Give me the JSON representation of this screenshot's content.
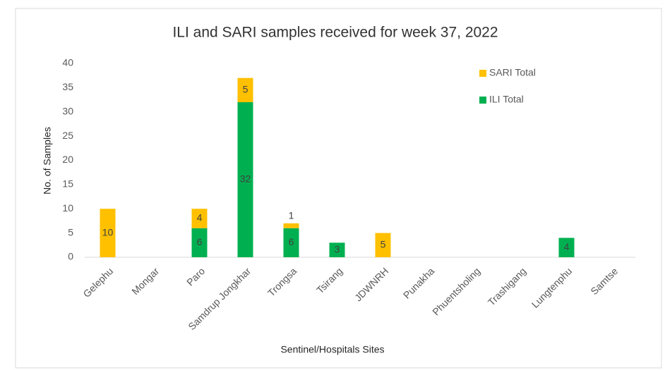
{
  "chart_data": {
    "type": "stacked_bar",
    "title": "ILI and SARI samples received for week 37, 2022",
    "y_label": "No. of Samples",
    "x_label": "Sentinel/Hospitals Sites",
    "categories": [
      "Gelephu",
      "Mongar",
      "Paro",
      "Samdrup Jongkhar",
      "Trongsa",
      "Tsirang",
      "JDWNRH",
      "Punakha",
      "Phuentsholing",
      "Trashigang",
      "Lungtenphu",
      "Samtse"
    ],
    "series": [
      {
        "name": "ILI Total",
        "color": "#00b050",
        "values": [
          null,
          null,
          6,
          32,
          6,
          3,
          null,
          null,
          null,
          null,
          4,
          null
        ]
      },
      {
        "name": "SARI Total",
        "color": "#ffc000",
        "values": [
          10,
          null,
          4,
          5,
          1,
          null,
          5,
          null,
          null,
          null,
          null,
          null
        ]
      }
    ],
    "ylim": [
      0,
      40
    ],
    "yticks": [
      0,
      5,
      10,
      15,
      20,
      25,
      30,
      35,
      40
    ],
    "grid": false,
    "legend": "top-right"
  }
}
